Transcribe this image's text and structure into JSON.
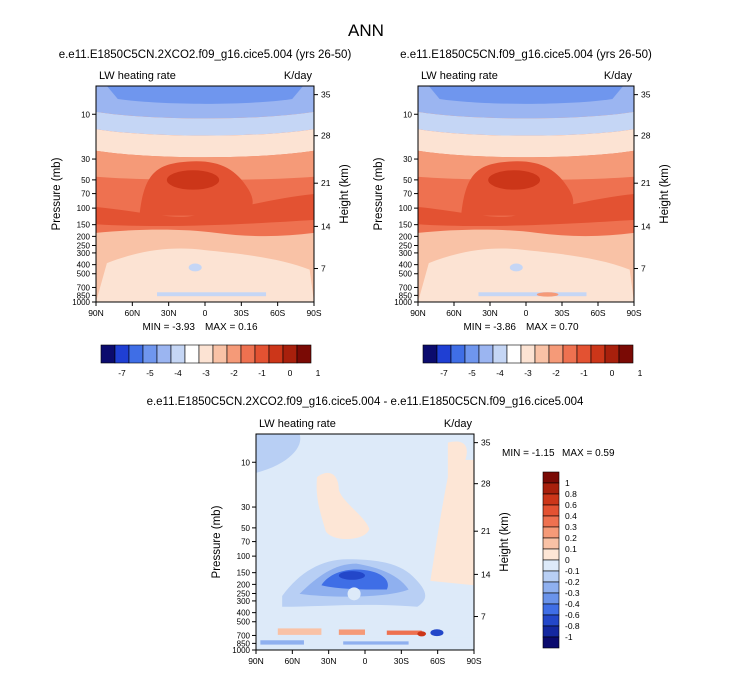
{
  "page_title": "ANN",
  "panels": [
    {
      "title": "e.e11.E1850C5CN.2XCO2.f09_g16.cice5.004 (yrs 26-50)",
      "variable_label": "LW heating rate",
      "units_label": "K/day",
      "ylabel": "Pressure (mb)",
      "ylabel_right": "Height (km)",
      "min_text": "MIN = -3.93",
      "max_text": "MAX = 0.16"
    },
    {
      "title": "e.e11.E1850C5CN.f09_g16.cice5.004 (yrs 26-50)",
      "variable_label": "LW heating rate",
      "units_label": "K/day",
      "ylabel": "Pressure (mb)",
      "ylabel_right": "Height (km)",
      "min_text": "MIN = -3.86",
      "max_text": "MAX = 0.70"
    },
    {
      "title": "e.e11.E1850C5CN.2XCO2.f09_g16.cice5.004 - e.e11.E1850C5CN.f09_g16.cice5.004",
      "variable_label": "LW heating rate",
      "units_label": "K/day",
      "ylabel": "Pressure (mb)",
      "ylabel_right": "Height (km)",
      "min_text": "MIN = -1.15",
      "max_text": "MAX = 0.59"
    }
  ],
  "x_tick_labels": [
    "90N",
    "60N",
    "30N",
    "0",
    "30S",
    "60S",
    "90S"
  ],
  "pressure_tick_labels": [
    "10",
    "30",
    "50",
    "70",
    "100",
    "150",
    "200",
    "250",
    "300",
    "400",
    "500",
    "700",
    "850",
    "1000"
  ],
  "height_tick_labels": [
    "35",
    "28",
    "21",
    "14",
    "7"
  ],
  "colorbar_top": {
    "tick_labels": [
      "-7",
      "-5",
      "-4",
      "-3",
      "-2",
      "-1",
      "0",
      "1"
    ],
    "colors": [
      "#0b0b6e",
      "#1f3fd3",
      "#3f6ee6",
      "#6f96ee",
      "#9bb5f1",
      "#c5d6f5",
      "#ffffff",
      "#fce3d3",
      "#f9c2a6",
      "#f59a78",
      "#ee7150",
      "#e35232",
      "#cc3619",
      "#a8200c",
      "#7a0a05"
    ]
  },
  "colorbar_diff": {
    "tick_labels": [
      "1",
      "0.8",
      "0.6",
      "0.4",
      "0.3",
      "0.2",
      "0.1",
      "0",
      "-0.1",
      "-0.2",
      "-0.3",
      "-0.4",
      "-0.6",
      "-0.8",
      "-1"
    ],
    "colors": [
      "#7a0a05",
      "#a8200c",
      "#cc3619",
      "#e35232",
      "#ee7150",
      "#f59a78",
      "#f9c2a6",
      "#fde6d6",
      "#ddeaf9",
      "#b8cff4",
      "#8fb0ef",
      "#6a93ea",
      "#3f6ee6",
      "#2347c9",
      "#1428a0",
      "#0b0b6e"
    ]
  },
  "chart_data": [
    {
      "type": "heatmap",
      "title": "e.e11.E1850C5CN.2XCO2.f09_g16.cice5.004 (yrs 26-50)",
      "xlabel": "",
      "ylabel": "Pressure (mb)",
      "x_ticks": [
        "90N",
        "60N",
        "30N",
        "0",
        "30S",
        "60S",
        "90S"
      ],
      "y_scale": "log",
      "y_range_mb": [
        1000,
        5
      ],
      "y_inverted": true,
      "units": "K/day",
      "min": -3.93,
      "max": 0.16,
      "colorbar_levels": [
        -7,
        -5,
        -4,
        -3,
        -2,
        -1,
        0,
        1
      ]
    },
    {
      "type": "heatmap",
      "title": "e.e11.E1850C5CN.f09_g16.cice5.004 (yrs 26-50)",
      "xlabel": "",
      "ylabel": "Pressure (mb)",
      "x_ticks": [
        "90N",
        "60N",
        "30N",
        "0",
        "30S",
        "60S",
        "90S"
      ],
      "y_scale": "log",
      "y_range_mb": [
        1000,
        5
      ],
      "y_inverted": true,
      "units": "K/day",
      "min": -3.86,
      "max": 0.7,
      "colorbar_levels": [
        -7,
        -5,
        -4,
        -3,
        -2,
        -1,
        0,
        1
      ]
    },
    {
      "type": "heatmap",
      "title": "e.e11.E1850C5CN.2XCO2.f09_g16.cice5.004 - e.e11.E1850C5CN.f09_g16.cice5.004",
      "xlabel": "",
      "ylabel": "Pressure (mb)",
      "x_ticks": [
        "90N",
        "60N",
        "30N",
        "0",
        "30S",
        "60S",
        "90S"
      ],
      "y_scale": "log",
      "y_range_mb": [
        1000,
        5
      ],
      "y_inverted": true,
      "units": "K/day",
      "min": -1.15,
      "max": 0.59,
      "colorbar_levels": [
        1,
        0.8,
        0.6,
        0.4,
        0.3,
        0.2,
        0.1,
        0,
        -0.1,
        -0.2,
        -0.3,
        -0.4,
        -0.6,
        -0.8,
        -1
      ]
    }
  ]
}
